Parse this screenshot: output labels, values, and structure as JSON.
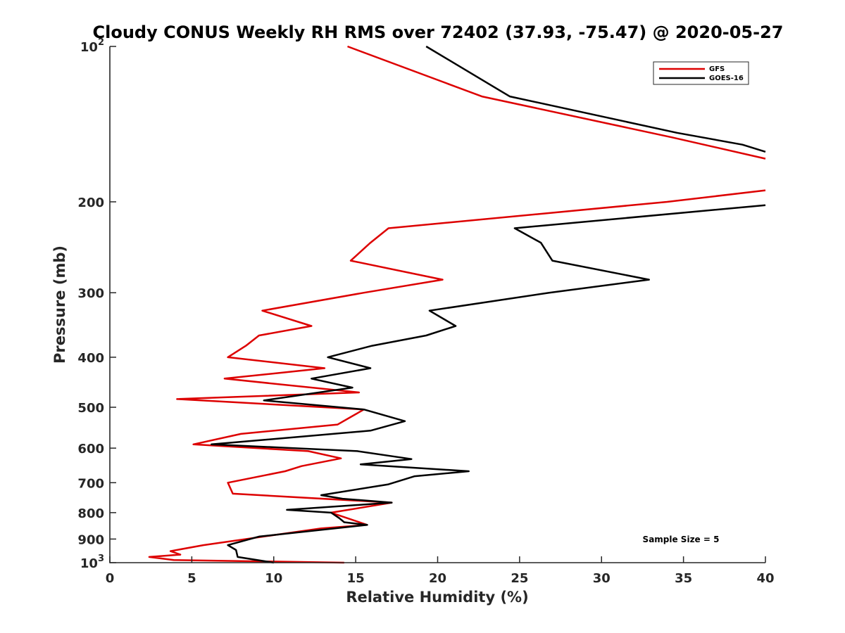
{
  "chart_data": {
    "type": "line",
    "title": "Cloudy CONUS Weekly RH RMS over 72402 (37.93, -75.47) @ 2020-05-27",
    "xlabel": "Relative Humidity (%)",
    "ylabel": "Pressure (mb)",
    "xlim": [
      0,
      40
    ],
    "ylim": [
      100,
      1000
    ],
    "yscale": "log",
    "y_reversed": true,
    "grid": false,
    "legend_position": "top-right",
    "xticks": [
      0,
      5,
      10,
      15,
      20,
      25,
      30,
      35,
      40
    ],
    "xtick_labels": [
      "0",
      "5",
      "10",
      "15",
      "20",
      "25",
      "30",
      "35",
      "40"
    ],
    "yticks": [
      100,
      200,
      300,
      400,
      500,
      600,
      700,
      800,
      900,
      1000
    ],
    "ytick_labels": [
      {
        "base": "10",
        "exp": "2"
      },
      {
        "text": "200"
      },
      {
        "text": "300"
      },
      {
        "text": "400"
      },
      {
        "text": "500"
      },
      {
        "text": "600"
      },
      {
        "text": "700"
      },
      {
        "text": "800"
      },
      {
        "text": "900"
      },
      {
        "base": "10",
        "exp": "3"
      }
    ],
    "annotation": "Sample Size = 5",
    "series": [
      {
        "name": "GFS",
        "color": "#dd0000",
        "points": [
          [
            14.5,
            100
          ],
          [
            22.7,
            125
          ],
          [
            34.3,
            150
          ],
          [
            40,
            165
          ],
          [
            null,
            null
          ],
          [
            40,
            190
          ],
          [
            34,
            200
          ],
          [
            17,
            225
          ],
          [
            15.9,
            240
          ],
          [
            14.7,
            260
          ],
          [
            20.3,
            283
          ],
          [
            15.5,
            300
          ],
          [
            9.3,
            325
          ],
          [
            12.3,
            348
          ],
          [
            9.1,
            363
          ],
          [
            8.3,
            380
          ],
          [
            7.2,
            400
          ],
          [
            13.1,
            420
          ],
          [
            7.0,
            440
          ],
          [
            15.2,
            468
          ],
          [
            4.1,
            482
          ],
          [
            15.5,
            505
          ],
          [
            14.8,
            520
          ],
          [
            13.9,
            540
          ],
          [
            8.0,
            563
          ],
          [
            5.1,
            590
          ],
          [
            12.1,
            608
          ],
          [
            14.1,
            628
          ],
          [
            11.7,
            650
          ],
          [
            10.7,
            665
          ],
          [
            7.2,
            700
          ],
          [
            7.5,
            735
          ],
          [
            17.2,
            765
          ],
          [
            13.5,
            800
          ],
          [
            15.7,
            845
          ],
          [
            12.9,
            858
          ],
          [
            5.7,
            925
          ],
          [
            3.7,
            950
          ],
          [
            4.3,
            965
          ],
          [
            2.4,
            975
          ],
          [
            3.9,
            988
          ],
          [
            14.3,
            1000
          ]
        ]
      },
      {
        "name": "GOES-16",
        "color": "#000000",
        "points": [
          [
            19.3,
            100
          ],
          [
            24.4,
            125
          ],
          [
            34.6,
            147
          ],
          [
            38.6,
            155
          ],
          [
            40,
            160
          ],
          [
            null,
            null
          ],
          [
            40,
            203
          ],
          [
            24.7,
            225
          ],
          [
            26.3,
            240
          ],
          [
            27,
            260
          ],
          [
            32.9,
            283
          ],
          [
            26.8,
            300
          ],
          [
            19.5,
            325
          ],
          [
            21.1,
            348
          ],
          [
            19.3,
            363
          ],
          [
            16,
            380
          ],
          [
            13.3,
            400
          ],
          [
            15.9,
            420
          ],
          [
            12.3,
            440
          ],
          [
            14.8,
            458
          ],
          [
            9.4,
            485
          ],
          [
            15.5,
            505
          ],
          [
            18.0,
            532
          ],
          [
            15.9,
            555
          ],
          [
            6.2,
            590
          ],
          [
            15.1,
            608
          ],
          [
            18.4,
            630
          ],
          [
            15.3,
            645
          ],
          [
            21.9,
            665
          ],
          [
            18.6,
            680
          ],
          [
            17.0,
            705
          ],
          [
            12.9,
            740
          ],
          [
            14.2,
            752
          ],
          [
            17.2,
            765
          ],
          [
            10.8,
            790
          ],
          [
            13.5,
            800
          ],
          [
            14.0,
            820
          ],
          [
            14.3,
            835
          ],
          [
            15.7,
            845
          ],
          [
            9.1,
            890
          ],
          [
            7.2,
            925
          ],
          [
            7.7,
            945
          ],
          [
            7.8,
            975
          ],
          [
            10.0,
            1000
          ]
        ]
      }
    ]
  }
}
